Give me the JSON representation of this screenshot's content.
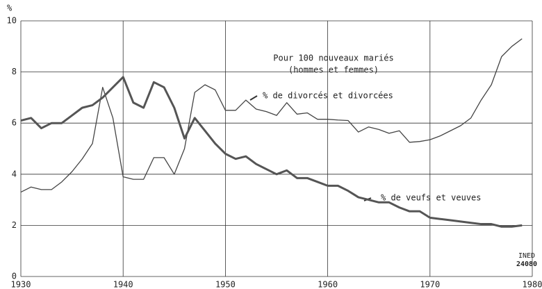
{
  "chart_data": {
    "type": "line",
    "y_label": "%",
    "annotations": [
      "Pour 100 nouveaux mariés",
      "(hommes et femmes)"
    ],
    "source": [
      "INED",
      "24080"
    ],
    "x": [
      1930,
      1931,
      1932,
      1933,
      1934,
      1935,
      1936,
      1937,
      1938,
      1939,
      1940,
      1941,
      1942,
      1943,
      1944,
      1945,
      1946,
      1947,
      1948,
      1949,
      1950,
      1951,
      1952,
      1953,
      1954,
      1955,
      1956,
      1957,
      1958,
      1959,
      1960,
      1961,
      1962,
      1963,
      1964,
      1965,
      1966,
      1967,
      1968,
      1969,
      1970,
      1971,
      1972,
      1973,
      1974,
      1975,
      1976,
      1977,
      1978,
      1979
    ],
    "series": [
      {
        "name": "% de divorcés et divorcées",
        "color": "#444",
        "width": 1.3,
        "values": [
          3.3,
          3.5,
          3.4,
          3.4,
          3.7,
          4.1,
          4.6,
          5.2,
          7.4,
          6.2,
          3.9,
          3.8,
          3.8,
          4.65,
          4.65,
          4.0,
          5.0,
          7.2,
          7.5,
          7.3,
          6.5,
          6.5,
          6.9,
          6.55,
          6.45,
          6.3,
          6.8,
          6.35,
          6.4,
          6.15,
          6.15,
          6.12,
          6.1,
          5.65,
          5.85,
          5.75,
          5.6,
          5.7,
          5.25,
          5.28,
          5.35,
          5.5,
          5.7,
          5.9,
          6.2,
          6.9,
          7.5,
          8.6,
          9.0,
          9.3
        ]
      },
      {
        "name": "% de veufs et veuves",
        "color": "#555",
        "width": 3,
        "values": [
          6.1,
          6.2,
          5.8,
          6.0,
          6.0,
          6.3,
          6.6,
          6.7,
          7.0,
          7.4,
          7.8,
          6.8,
          6.6,
          7.6,
          7.4,
          6.6,
          5.4,
          6.2,
          5.7,
          5.2,
          4.8,
          4.6,
          4.7,
          4.4,
          4.2,
          4.0,
          4.15,
          3.85,
          3.85,
          3.7,
          3.55,
          3.55,
          3.35,
          3.1,
          3.0,
          2.9,
          2.9,
          2.7,
          2.55,
          2.55,
          2.3,
          2.25,
          2.2,
          2.15,
          2.1,
          2.05,
          2.05,
          1.95,
          1.95,
          2.0
        ]
      }
    ],
    "xlim": [
      1930,
      1980
    ],
    "xticks": [
      1930,
      1940,
      1950,
      1960,
      1970,
      1980
    ],
    "ylim": [
      0,
      10
    ],
    "yticks": [
      0,
      2,
      4,
      6,
      8,
      10
    ],
    "grid": true
  }
}
